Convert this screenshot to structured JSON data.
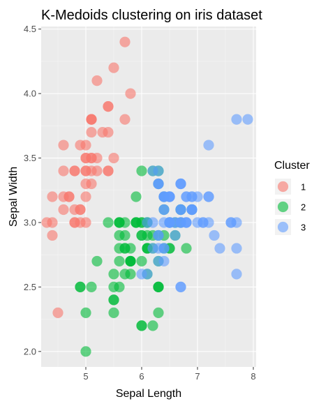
{
  "chart_data": {
    "type": "scatter",
    "title": "K-Medoids clustering on iris dataset",
    "xlabel": "Sepal Length",
    "ylabel": "Sepal Width",
    "xlim": [
      4.2,
      8.05
    ],
    "ylim": [
      1.88,
      4.52
    ],
    "xticks": [
      5,
      6,
      7,
      8
    ],
    "yticks": [
      2.0,
      2.5,
      3.0,
      3.5,
      4.0,
      4.5
    ],
    "xtick_labels": [
      "5",
      "6",
      "7",
      "8"
    ],
    "ytick_labels": [
      "2.0",
      "2.5",
      "3.0",
      "3.5",
      "4.0",
      "4.5"
    ],
    "grid": true,
    "legend": {
      "title": "Cluster",
      "position": "right",
      "entries": [
        {
          "label": "1",
          "color": "#F8766D"
        },
        {
          "label": "2",
          "color": "#00BA38"
        },
        {
          "label": "3",
          "color": "#619CFF"
        }
      ]
    },
    "series": [
      {
        "label": "1",
        "color": "#F8766D",
        "points": [
          [
            5.1,
            3.5
          ],
          [
            4.9,
            3.0
          ],
          [
            4.7,
            3.2
          ],
          [
            4.6,
            3.1
          ],
          [
            5.0,
            3.6
          ],
          [
            5.4,
            3.9
          ],
          [
            4.6,
            3.4
          ],
          [
            5.0,
            3.4
          ],
          [
            4.4,
            2.9
          ],
          [
            4.9,
            3.1
          ],
          [
            5.4,
            3.7
          ],
          [
            4.8,
            3.4
          ],
          [
            4.8,
            3.0
          ],
          [
            4.3,
            3.0
          ],
          [
            5.8,
            4.0
          ],
          [
            5.7,
            4.4
          ],
          [
            5.4,
            3.9
          ],
          [
            5.1,
            3.5
          ],
          [
            5.7,
            3.8
          ],
          [
            5.1,
            3.8
          ],
          [
            5.4,
            3.4
          ],
          [
            5.1,
            3.7
          ],
          [
            4.6,
            3.6
          ],
          [
            5.1,
            3.3
          ],
          [
            4.8,
            3.4
          ],
          [
            5.0,
            3.0
          ],
          [
            5.0,
            3.4
          ],
          [
            5.2,
            3.5
          ],
          [
            5.2,
            3.4
          ],
          [
            4.7,
            3.2
          ],
          [
            4.8,
            3.1
          ],
          [
            5.4,
            3.4
          ],
          [
            5.2,
            4.1
          ],
          [
            5.5,
            4.2
          ],
          [
            4.9,
            3.1
          ],
          [
            5.0,
            3.2
          ],
          [
            5.5,
            3.5
          ],
          [
            4.9,
            3.6
          ],
          [
            4.4,
            3.0
          ],
          [
            5.1,
            3.4
          ],
          [
            5.0,
            3.5
          ],
          [
            4.5,
            2.3
          ],
          [
            4.4,
            3.2
          ],
          [
            5.0,
            3.5
          ],
          [
            5.1,
            3.8
          ],
          [
            4.8,
            3.0
          ],
          [
            5.1,
            3.8
          ],
          [
            4.6,
            3.2
          ],
          [
            5.3,
            3.7
          ],
          [
            5.0,
            3.3
          ]
        ]
      },
      {
        "label": "2",
        "color": "#00BA38",
        "points": [
          [
            6.3,
            3.3
          ],
          [
            6.4,
            3.2
          ],
          [
            5.5,
            2.3
          ],
          [
            6.5,
            2.8
          ],
          [
            5.7,
            2.8
          ],
          [
            4.9,
            2.5
          ],
          [
            6.6,
            2.9
          ],
          [
            5.2,
            2.7
          ],
          [
            5.0,
            2.0
          ],
          [
            5.9,
            3.0
          ],
          [
            6.0,
            2.2
          ],
          [
            6.1,
            2.9
          ],
          [
            5.6,
            2.9
          ],
          [
            6.7,
            3.1
          ],
          [
            5.6,
            3.0
          ],
          [
            5.8,
            2.7
          ],
          [
            6.2,
            2.2
          ],
          [
            5.6,
            2.5
          ],
          [
            5.9,
            3.2
          ],
          [
            6.1,
            2.8
          ],
          [
            6.3,
            2.5
          ],
          [
            6.1,
            2.8
          ],
          [
            6.4,
            2.9
          ],
          [
            6.6,
            3.0
          ],
          [
            6.8,
            2.8
          ],
          [
            6.0,
            2.9
          ],
          [
            5.7,
            2.6
          ],
          [
            5.5,
            2.4
          ],
          [
            5.5,
            2.4
          ],
          [
            5.8,
            2.7
          ],
          [
            6.0,
            2.7
          ],
          [
            5.4,
            3.0
          ],
          [
            6.0,
            3.4
          ],
          [
            6.3,
            2.3
          ],
          [
            5.6,
            3.0
          ],
          [
            5.5,
            2.5
          ],
          [
            5.5,
            2.6
          ],
          [
            6.1,
            3.0
          ],
          [
            5.8,
            2.6
          ],
          [
            5.0,
            2.3
          ],
          [
            5.6,
            2.7
          ],
          [
            5.7,
            3.0
          ],
          [
            5.7,
            2.9
          ],
          [
            6.2,
            2.9
          ],
          [
            5.1,
            2.5
          ],
          [
            5.7,
            2.8
          ],
          [
            4.9,
            2.5
          ],
          [
            6.0,
            2.2
          ],
          [
            5.6,
            2.8
          ],
          [
            6.3,
            2.7
          ],
          [
            6.2,
            2.8
          ],
          [
            6.1,
            3.0
          ],
          [
            6.4,
            2.8
          ],
          [
            6.0,
            3.0
          ],
          [
            6.3,
            2.5
          ],
          [
            6.1,
            2.6
          ],
          [
            6.3,
            3.4
          ],
          [
            6.4,
            3.1
          ],
          [
            6.0,
            3.0
          ],
          [
            6.9,
            3.1
          ],
          [
            6.7,
            3.1
          ],
          [
            5.8,
            2.7
          ],
          [
            6.7,
            3.0
          ],
          [
            6.3,
            2.5
          ],
          [
            6.5,
            3.0
          ],
          [
            6.2,
            3.4
          ],
          [
            5.9,
            3.0
          ],
          [
            5.8,
            2.8
          ],
          [
            6.0,
            2.9
          ],
          [
            5.9,
            3.0
          ],
          [
            6.3,
            2.9
          ],
          [
            5.8,
            2.7
          ],
          [
            6.1,
            2.8
          ],
          [
            5.6,
            3.0
          ],
          [
            6.5,
            2.8
          ]
        ]
      },
      {
        "label": "3",
        "color": "#619CFF",
        "points": [
          [
            7.0,
            3.2
          ],
          [
            6.9,
            3.1
          ],
          [
            6.7,
            3.1
          ],
          [
            6.4,
            3.2
          ],
          [
            7.1,
            3.0
          ],
          [
            7.6,
            3.0
          ],
          [
            7.3,
            2.9
          ],
          [
            6.7,
            2.5
          ],
          [
            7.2,
            3.6
          ],
          [
            6.5,
            3.2
          ],
          [
            6.4,
            2.7
          ],
          [
            6.8,
            3.0
          ],
          [
            6.5,
            3.0
          ],
          [
            7.7,
            3.8
          ],
          [
            7.7,
            2.6
          ],
          [
            6.9,
            3.2
          ],
          [
            7.7,
            2.8
          ],
          [
            6.7,
            3.3
          ],
          [
            7.2,
            3.2
          ],
          [
            6.2,
            2.8
          ],
          [
            6.4,
            2.8
          ],
          [
            7.2,
            3.0
          ],
          [
            7.4,
            2.8
          ],
          [
            7.9,
            3.8
          ],
          [
            6.4,
            2.8
          ],
          [
            6.3,
            2.8
          ],
          [
            6.1,
            2.6
          ],
          [
            7.7,
            3.0
          ],
          [
            6.3,
            3.4
          ],
          [
            6.4,
            3.1
          ],
          [
            6.9,
            3.1
          ],
          [
            6.7,
            3.0
          ],
          [
            6.8,
            3.2
          ],
          [
            6.7,
            3.3
          ],
          [
            6.5,
            3.0
          ],
          [
            6.2,
            3.4
          ],
          [
            7.6,
            3.0
          ],
          [
            6.5,
            3.2
          ],
          [
            6.3,
            2.9
          ],
          [
            6.7,
            2.5
          ],
          [
            6.3,
            3.3
          ],
          [
            6.7,
            3.1
          ],
          [
            6.4,
            3.2
          ],
          [
            6.8,
            3.2
          ],
          [
            6.5,
            3.0
          ],
          [
            6.6,
            3.0
          ],
          [
            6.9,
            3.1
          ],
          [
            6.0,
            2.6
          ],
          [
            6.3,
            3.3
          ],
          [
            6.7,
            3.3
          ],
          [
            6.5,
            3.2
          ],
          [
            6.4,
            3.1
          ],
          [
            6.4,
            3.0
          ],
          [
            6.2,
            3.0
          ],
          [
            6.6,
            2.9
          ],
          [
            6.3,
            2.7
          ],
          [
            6.7,
            3.0
          ],
          [
            6.4,
            3.2
          ],
          [
            6.9,
            3.2
          ],
          [
            7.0,
            3.0
          ],
          [
            6.3,
            3.3
          ],
          [
            6.8,
            3.0
          ],
          [
            6.5,
            3.0
          ],
          [
            7.1,
            3.0
          ],
          [
            7.2,
            3.2
          ],
          [
            6.7,
            3.1
          ],
          [
            6.3,
            2.9
          ],
          [
            6.6,
            3.0
          ],
          [
            6.4,
            3.2
          ],
          [
            6.1,
            3.0
          ],
          [
            6.9,
            3.1
          ],
          [
            6.7,
            3.0
          ],
          [
            6.8,
            3.0
          ],
          [
            6.5,
            3.0
          ],
          [
            6.5,
            3.2
          ]
        ]
      }
    ]
  }
}
